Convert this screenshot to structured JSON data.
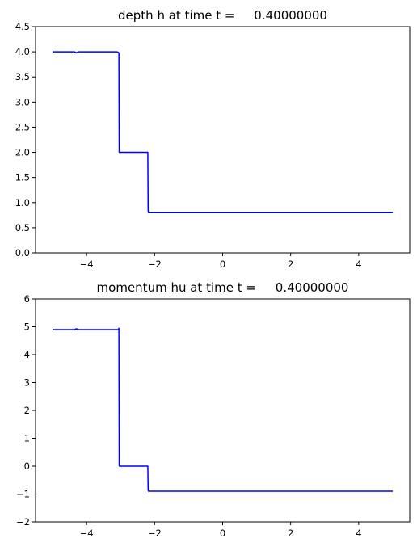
{
  "chart_data": [
    {
      "type": "line",
      "title": "depth h at time t =     0.40000000",
      "xlabel": "",
      "ylabel": "",
      "xlim": [
        -5.5,
        5.5
      ],
      "ylim": [
        0,
        4.5
      ],
      "xticks": [
        -4,
        -2,
        0,
        2,
        4
      ],
      "xtick_labels": [
        "−4",
        "−2",
        "0",
        "2",
        "4"
      ],
      "yticks": [
        0,
        0.5,
        1,
        1.5,
        2,
        2.5,
        3,
        3.5,
        4,
        4.5
      ],
      "ytick_labels": [
        "0.0",
        "0.5",
        "1.0",
        "1.5",
        "2.0",
        "2.5",
        "3.0",
        "3.5",
        "4.0",
        "4.5"
      ],
      "grid": false,
      "series": [
        {
          "color": "#0000ff",
          "x": [
            -5.0,
            -4.35,
            -4.3,
            -4.25,
            -3.1,
            -3.05,
            -3.04,
            -3.03,
            -2.2,
            -2.19,
            -2.18,
            5.0
          ],
          "y": [
            4.0,
            4.0,
            3.98,
            4.0,
            4.0,
            3.98,
            2.0,
            2.0,
            2.0,
            0.85,
            0.8,
            0.8
          ]
        }
      ]
    },
    {
      "type": "line",
      "title": "momentum hu at time t =     0.40000000",
      "xlabel": "",
      "ylabel": "",
      "xlim": [
        -5.5,
        5.5
      ],
      "ylim": [
        -2,
        6
      ],
      "xticks": [
        -4,
        -2,
        0,
        2,
        4
      ],
      "xtick_labels": [
        "−4",
        "−2",
        "0",
        "2",
        "4"
      ],
      "yticks": [
        -2,
        -1,
        0,
        1,
        2,
        3,
        4,
        5,
        6
      ],
      "ytick_labels": [
        "−2",
        "−1",
        "0",
        "1",
        "2",
        "3",
        "4",
        "5",
        "6"
      ],
      "grid": false,
      "series": [
        {
          "color": "#0000ff",
          "x": [
            -5.0,
            -4.35,
            -4.3,
            -4.25,
            -3.06,
            -3.05,
            -3.04,
            -3.03,
            -2.2,
            -2.19,
            -2.18,
            5.0
          ],
          "y": [
            4.9,
            4.9,
            4.93,
            4.9,
            4.9,
            4.95,
            0.02,
            0.0,
            0.0,
            -0.85,
            -0.9,
            -0.9
          ]
        }
      ]
    }
  ]
}
